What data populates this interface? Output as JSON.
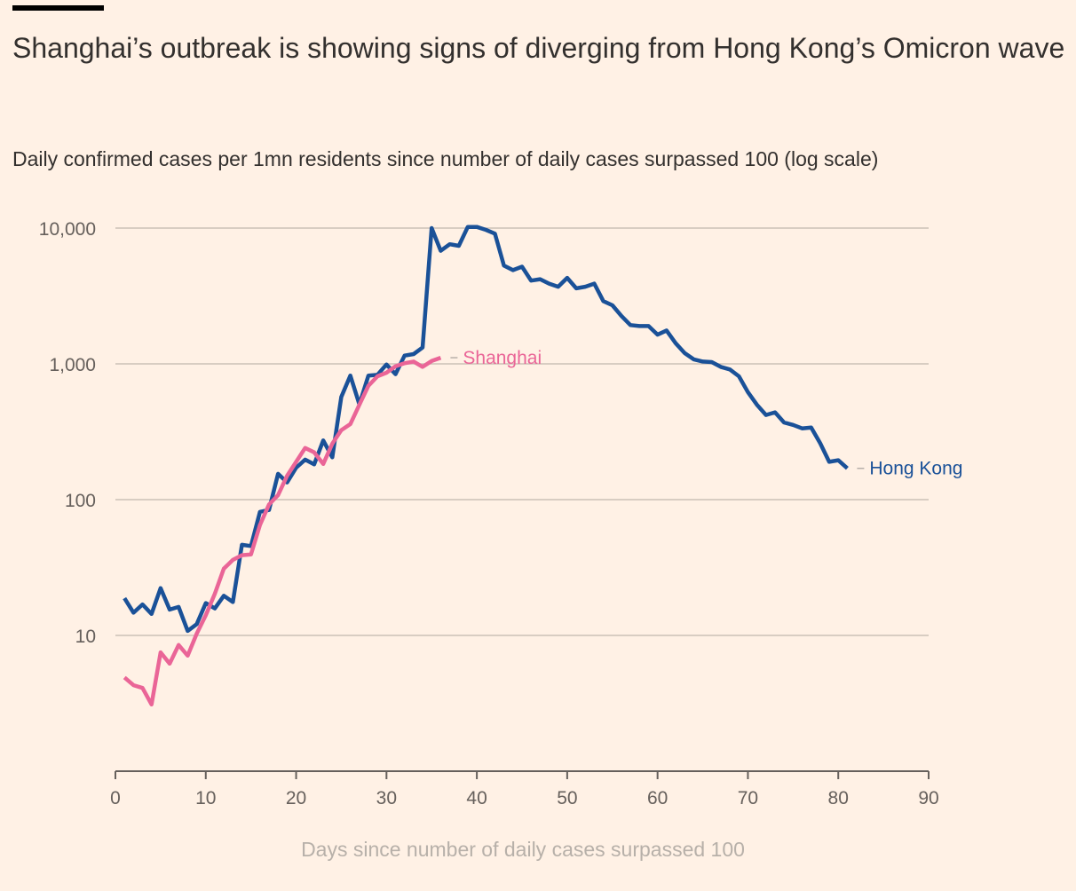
{
  "title": "Shanghai’s outbreak is showing signs of diverging from Hong Kong’s Omicron wave",
  "subtitle": "Daily confirmed cases per 1mn residents since number of daily cases surpassed 100 (log scale)",
  "colors": {
    "background": "#fff1e5",
    "hong_kong": "#1a5198",
    "shanghai": "#ea6597",
    "grid": "#ccc1b7",
    "axis": "#66605c"
  },
  "chart_data": {
    "type": "line",
    "title": "Shanghai’s outbreak is showing signs of diverging from Hong Kong’s Omicron wave",
    "subtitle": "Daily confirmed cases per 1mn residents since number of daily cases surpassed 100 (log scale)",
    "xlabel": "Days since number of daily cases surpassed 100",
    "ylabel": "",
    "xlim": [
      0,
      90
    ],
    "ylim": [
      1,
      10000
    ],
    "y_scale": "log",
    "grid": "horizontal",
    "legend": "inline labels at line ends",
    "x_ticks": [
      "0",
      "10",
      "20",
      "30",
      "40",
      "50",
      "60",
      "70",
      "80",
      "90"
    ],
    "y_ticks": [
      "10",
      "100",
      "1,000",
      "10,000"
    ],
    "series": [
      {
        "name": "Hong Kong",
        "x": [
          1,
          2,
          3,
          4,
          5,
          6,
          7,
          8,
          9,
          10,
          11,
          12,
          13,
          14,
          15,
          16,
          17,
          18,
          19,
          20,
          21,
          22,
          23,
          24,
          25,
          26,
          27,
          28,
          29,
          30,
          31,
          32,
          33,
          34,
          35,
          36,
          37,
          38,
          39,
          40,
          41,
          42,
          43,
          44,
          45,
          46,
          47,
          48,
          49,
          50,
          51,
          52,
          53,
          54,
          55,
          56,
          57,
          58,
          59,
          60,
          61,
          62,
          63,
          64,
          65,
          66,
          67,
          68,
          69,
          70,
          71,
          72,
          73,
          74,
          75,
          76,
          77,
          78,
          79,
          80,
          81
        ],
        "y": [
          18.8,
          14.7,
          16.9,
          14.4,
          22.3,
          15.5,
          16.2,
          10.8,
          12.1,
          17.3,
          15.8,
          19.6,
          17.6,
          46.5,
          45.5,
          81.3,
          83.9,
          155,
          134,
          172,
          197,
          182,
          273,
          205,
          570,
          820,
          503,
          820,
          830,
          990,
          840,
          1150,
          1180,
          1320,
          10000,
          6800,
          7600,
          7400,
          10200,
          10200,
          9700,
          9100,
          5300,
          4900,
          5200,
          4100,
          4200,
          3900,
          3700,
          4300,
          3600,
          3700,
          3900,
          2900,
          2700,
          2250,
          1930,
          1900,
          1900,
          1640,
          1760,
          1420,
          1200,
          1080,
          1040,
          1030,
          950,
          910,
          810,
          620,
          500,
          420,
          440,
          370,
          355,
          335,
          340,
          260,
          190,
          195,
          170
        ]
      },
      {
        "name": "Shanghai",
        "x": [
          1,
          2,
          3,
          4,
          5,
          6,
          7,
          8,
          9,
          10,
          11,
          12,
          13,
          14,
          15,
          16,
          17,
          18,
          19,
          20,
          21,
          22,
          23,
          24,
          25,
          26,
          27,
          28,
          29,
          30,
          31,
          32,
          33,
          34,
          35,
          36
        ],
        "y": [
          4.9,
          4.3,
          4.1,
          3.1,
          7.5,
          6.2,
          8.5,
          7.1,
          10.3,
          14.1,
          20.3,
          31,
          36,
          39,
          39.5,
          65,
          92,
          108,
          150,
          190,
          240,
          223,
          183,
          258,
          325,
          360,
          500,
          690,
          810,
          860,
          960,
          1010,
          1040,
          950,
          1050,
          1110
        ]
      }
    ]
  }
}
